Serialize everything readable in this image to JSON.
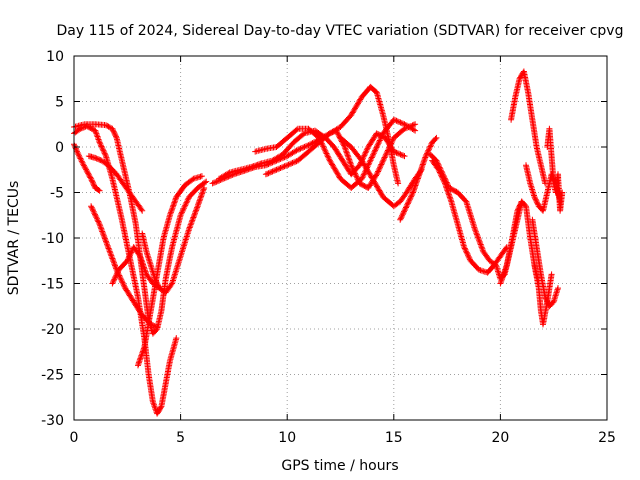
{
  "chart_data": {
    "type": "scatter",
    "title": "Day 115 of 2024, Sidereal Day-to-day VTEC variation (SDTVAR) for receiver cpvg",
    "xlabel": "GPS time / hours",
    "ylabel": "SDTVAR / TECUs",
    "xlim": [
      0,
      25
    ],
    "ylim": [
      -30,
      10
    ],
    "xticks": [
      0,
      5,
      10,
      15,
      20,
      25
    ],
    "yticks": [
      -30,
      -25,
      -20,
      -15,
      -10,
      -5,
      0,
      5,
      10
    ],
    "xtick_labels": [
      "0",
      "5",
      "10",
      "15",
      "20",
      "25"
    ],
    "ytick_labels": [
      "-30",
      "-25",
      "-20",
      "-15",
      "-10",
      "-5",
      "0",
      "5",
      "10"
    ],
    "grid": true,
    "marker": "+",
    "series": [
      {
        "name": "track-1",
        "color": "#ff0000",
        "points": [
          [
            0.0,
            2.2
          ],
          [
            0.5,
            2.5
          ],
          [
            1.0,
            2.5
          ],
          [
            1.5,
            2.4
          ],
          [
            1.8,
            2.0
          ],
          [
            2.0,
            1.0
          ],
          [
            2.3,
            -2.0
          ],
          [
            2.6,
            -5.0
          ],
          [
            2.9,
            -8.5
          ],
          [
            3.1,
            -12.0
          ],
          [
            3.3,
            -15.5
          ],
          [
            3.5,
            -19.0
          ],
          [
            3.7,
            -20.5
          ],
          [
            3.9,
            -20.0
          ],
          [
            4.1,
            -18.0
          ],
          [
            4.3,
            -14.5
          ],
          [
            4.6,
            -11.0
          ],
          [
            5.0,
            -7.5
          ],
          [
            5.4,
            -5.5
          ],
          [
            5.8,
            -4.5
          ],
          [
            6.2,
            -3.8
          ]
        ]
      },
      {
        "name": "track-2",
        "color": "#ff0000",
        "points": [
          [
            0.0,
            1.5
          ],
          [
            0.3,
            2.0
          ],
          [
            0.6,
            2.3
          ],
          [
            1.0,
            1.8
          ],
          [
            1.2,
            0.5
          ],
          [
            1.5,
            -1.0
          ],
          [
            1.8,
            -3.5
          ],
          [
            2.2,
            -7.5
          ],
          [
            2.6,
            -12.0
          ],
          [
            3.0,
            -16.5
          ],
          [
            3.3,
            -21.0
          ],
          [
            3.5,
            -25.0
          ],
          [
            3.7,
            -28.0
          ],
          [
            3.9,
            -29.3
          ],
          [
            4.1,
            -28.5
          ],
          [
            4.3,
            -26.0
          ],
          [
            4.5,
            -23.5
          ],
          [
            4.8,
            -21.0
          ]
        ]
      },
      {
        "name": "track-3",
        "color": "#ff0000",
        "points": [
          [
            0.0,
            0.3
          ],
          [
            0.2,
            -0.8
          ],
          [
            0.5,
            -2.2
          ],
          [
            0.8,
            -3.5
          ],
          [
            1.0,
            -4.5
          ],
          [
            1.2,
            -4.8
          ]
        ]
      },
      {
        "name": "track-4",
        "color": "#ff0000",
        "points": [
          [
            0.7,
            -1.0
          ],
          [
            1.0,
            -1.2
          ],
          [
            1.3,
            -1.5
          ],
          [
            1.6,
            -2.0
          ],
          [
            2.0,
            -3.0
          ],
          [
            2.3,
            -4.0
          ],
          [
            2.6,
            -5.0
          ],
          [
            2.9,
            -6.0
          ],
          [
            3.2,
            -7.0
          ]
        ]
      },
      {
        "name": "track-5",
        "color": "#ff0000",
        "points": [
          [
            0.8,
            -6.5
          ],
          [
            1.2,
            -8.5
          ],
          [
            1.6,
            -11.0
          ],
          [
            2.0,
            -13.5
          ],
          [
            2.4,
            -15.5
          ],
          [
            2.8,
            -17.0
          ],
          [
            3.2,
            -18.5
          ],
          [
            3.6,
            -19.5
          ],
          [
            3.9,
            -19.8
          ]
        ]
      },
      {
        "name": "track-6",
        "color": "#ff0000",
        "points": [
          [
            1.8,
            -15.0
          ],
          [
            2.1,
            -13.5
          ],
          [
            2.5,
            -12.5
          ],
          [
            2.8,
            -11.0
          ],
          [
            3.1,
            -12.0
          ],
          [
            3.4,
            -14.0
          ],
          [
            3.7,
            -15.0
          ],
          [
            4.0,
            -15.5
          ]
        ]
      },
      {
        "name": "track-7",
        "color": "#ff0000",
        "points": [
          [
            3.2,
            -9.5
          ],
          [
            3.4,
            -11.5
          ],
          [
            3.6,
            -13.0
          ],
          [
            3.8,
            -14.5
          ],
          [
            4.0,
            -15.5
          ],
          [
            4.3,
            -16.0
          ],
          [
            4.6,
            -15.0
          ],
          [
            5.0,
            -12.0
          ],
          [
            5.4,
            -9.0
          ],
          [
            5.8,
            -6.5
          ],
          [
            6.1,
            -4.5
          ]
        ]
      },
      {
        "name": "track-8",
        "color": "#ff0000",
        "points": [
          [
            3.0,
            -24.0
          ],
          [
            3.3,
            -22.0
          ],
          [
            3.6,
            -18.0
          ],
          [
            3.9,
            -14.0
          ],
          [
            4.2,
            -10.0
          ],
          [
            4.5,
            -7.5
          ],
          [
            4.8,
            -5.5
          ],
          [
            5.2,
            -4.2
          ],
          [
            5.6,
            -3.5
          ],
          [
            6.0,
            -3.2
          ]
        ]
      },
      {
        "name": "track-9",
        "color": "#ff0000",
        "points": [
          [
            6.5,
            -4.0
          ],
          [
            7.0,
            -3.5
          ],
          [
            7.5,
            -3.0
          ],
          [
            8.0,
            -2.6
          ],
          [
            8.5,
            -2.2
          ],
          [
            9.0,
            -2.0
          ],
          [
            9.5,
            -1.5
          ],
          [
            10.0,
            -1.0
          ],
          [
            10.5,
            -0.3
          ],
          [
            11.0,
            0.2
          ],
          [
            11.5,
            0.8
          ],
          [
            12.0,
            1.5
          ],
          [
            12.5,
            2.2
          ],
          [
            13.0,
            3.5
          ],
          [
            13.5,
            5.5
          ],
          [
            13.9,
            6.6
          ],
          [
            14.2,
            6.0
          ],
          [
            14.5,
            3.5
          ],
          [
            14.8,
            0.5
          ],
          [
            15.0,
            -2.0
          ],
          [
            15.2,
            -4.0
          ]
        ]
      },
      {
        "name": "track-10",
        "color": "#ff0000",
        "points": [
          [
            6.8,
            -3.5
          ],
          [
            7.3,
            -2.8
          ],
          [
            7.8,
            -2.5
          ],
          [
            8.3,
            -2.2
          ],
          [
            8.8,
            -1.8
          ],
          [
            9.3,
            -1.5
          ],
          [
            9.8,
            -0.8
          ],
          [
            10.3,
            0.5
          ],
          [
            10.8,
            1.5
          ],
          [
            11.3,
            1.8
          ],
          [
            11.8,
            1.0
          ],
          [
            12.2,
            0.0
          ],
          [
            12.6,
            -1.5
          ],
          [
            13.0,
            -3.0
          ],
          [
            13.4,
            -2.0
          ],
          [
            13.8,
            0.0
          ],
          [
            14.2,
            1.5
          ],
          [
            14.6,
            1.0
          ],
          [
            15.0,
            -0.5
          ],
          [
            15.5,
            -1.0
          ]
        ]
      },
      {
        "name": "track-11",
        "color": "#ff0000",
        "points": [
          [
            9.0,
            -3.0
          ],
          [
            9.5,
            -2.5
          ],
          [
            10.0,
            -2.0
          ],
          [
            10.5,
            -1.5
          ],
          [
            11.0,
            -0.5
          ],
          [
            11.5,
            0.5
          ],
          [
            12.0,
            1.5
          ],
          [
            12.3,
            1.8
          ],
          [
            12.7,
            0.0
          ],
          [
            13.0,
            -2.0
          ],
          [
            13.4,
            -4.0
          ],
          [
            13.8,
            -4.5
          ],
          [
            14.2,
            -3.0
          ],
          [
            14.6,
            -1.0
          ],
          [
            15.0,
            1.0
          ],
          [
            15.5,
            2.0
          ],
          [
            16.0,
            2.5
          ]
        ]
      },
      {
        "name": "track-12",
        "color": "#ff0000",
        "points": [
          [
            8.5,
            -0.5
          ],
          [
            9.0,
            -0.2
          ],
          [
            9.5,
            0.0
          ],
          [
            10.0,
            1.0
          ],
          [
            10.5,
            2.0
          ],
          [
            11.0,
            2.0
          ],
          [
            11.5,
            1.0
          ],
          [
            12.0,
            -1.5
          ],
          [
            12.5,
            -3.5
          ],
          [
            13.0,
            -4.5
          ],
          [
            13.5,
            -3.5
          ],
          [
            14.0,
            -1.0
          ],
          [
            14.5,
            1.5
          ],
          [
            15.0,
            3.0
          ],
          [
            15.5,
            2.5
          ],
          [
            16.0,
            1.8
          ]
        ]
      },
      {
        "name": "track-13",
        "color": "#ff0000",
        "points": [
          [
            12.5,
            1.0
          ],
          [
            13.0,
            0.0
          ],
          [
            13.5,
            -1.5
          ],
          [
            14.0,
            -3.5
          ],
          [
            14.5,
            -5.5
          ],
          [
            15.0,
            -6.5
          ],
          [
            15.3,
            -6.0
          ],
          [
            15.6,
            -5.0
          ],
          [
            16.0,
            -3.5
          ],
          [
            16.3,
            -2.5
          ]
        ]
      },
      {
        "name": "track-14",
        "color": "#ff0000",
        "points": [
          [
            15.3,
            -8.0
          ],
          [
            15.6,
            -6.5
          ],
          [
            15.9,
            -5.0
          ],
          [
            16.2,
            -3.0
          ],
          [
            16.5,
            -1.0
          ],
          [
            16.8,
            0.5
          ],
          [
            17.0,
            1.0
          ]
        ]
      },
      {
        "name": "track-15",
        "color": "#ff0000",
        "points": [
          [
            16.8,
            -1.5
          ],
          [
            17.1,
            -2.5
          ],
          [
            17.4,
            -4.0
          ],
          [
            17.7,
            -6.0
          ],
          [
            18.0,
            -8.5
          ],
          [
            18.3,
            -11.0
          ],
          [
            18.6,
            -12.5
          ],
          [
            19.0,
            -13.5
          ],
          [
            19.4,
            -13.8
          ],
          [
            19.7,
            -13.0
          ],
          [
            20.0,
            -12.0
          ],
          [
            20.3,
            -11.0
          ]
        ]
      },
      {
        "name": "track-16",
        "color": "#ff0000",
        "points": [
          [
            16.7,
            -0.8
          ],
          [
            17.0,
            -1.5
          ],
          [
            17.3,
            -3.0
          ],
          [
            17.6,
            -4.5
          ],
          [
            18.0,
            -5.0
          ],
          [
            18.4,
            -6.0
          ],
          [
            18.8,
            -9.0
          ],
          [
            19.2,
            -11.5
          ],
          [
            19.5,
            -12.5
          ],
          [
            19.8,
            -13.0
          ],
          [
            20.0,
            -14.5
          ],
          [
            20.2,
            -14.0
          ],
          [
            20.5,
            -11.0
          ],
          [
            20.8,
            -8.0
          ],
          [
            21.0,
            -6.0
          ]
        ]
      },
      {
        "name": "track-17",
        "color": "#ff0000",
        "points": [
          [
            20.0,
            -15.0
          ],
          [
            20.3,
            -13.0
          ],
          [
            20.6,
            -9.5
          ],
          [
            20.8,
            -7.0
          ],
          [
            21.0,
            -6.0
          ],
          [
            21.2,
            -6.5
          ],
          [
            21.4,
            -10.0
          ],
          [
            21.6,
            -13.0
          ],
          [
            21.8,
            -15.0
          ]
        ]
      },
      {
        "name": "track-18",
        "color": "#ff0000",
        "points": [
          [
            20.5,
            3.0
          ],
          [
            20.7,
            5.5
          ],
          [
            20.9,
            7.5
          ],
          [
            21.1,
            8.3
          ],
          [
            21.3,
            6.0
          ],
          [
            21.5,
            3.0
          ],
          [
            21.7,
            0.0
          ],
          [
            21.9,
            -2.0
          ],
          [
            22.1,
            -4.0
          ]
        ]
      },
      {
        "name": "track-19",
        "color": "#ff0000",
        "points": [
          [
            21.5,
            -8.0
          ],
          [
            21.7,
            -11.0
          ],
          [
            21.9,
            -14.0
          ],
          [
            22.1,
            -16.5
          ],
          [
            22.3,
            -17.5
          ],
          [
            22.5,
            -17.0
          ],
          [
            22.7,
            -15.5
          ]
        ]
      },
      {
        "name": "track-20",
        "color": "#ff0000",
        "points": [
          [
            21.6,
            -13.0
          ],
          [
            21.8,
            -15.5
          ],
          [
            21.9,
            -18.0
          ],
          [
            22.0,
            -19.5
          ],
          [
            22.2,
            -17.0
          ],
          [
            22.4,
            -14.0
          ]
        ]
      },
      {
        "name": "track-21",
        "color": "#ff0000",
        "points": [
          [
            21.2,
            -2.0
          ],
          [
            21.4,
            -4.0
          ],
          [
            21.6,
            -5.5
          ],
          [
            21.8,
            -6.5
          ],
          [
            22.0,
            -7.0
          ],
          [
            22.2,
            -5.0
          ],
          [
            22.4,
            -3.0
          ],
          [
            22.6,
            -4.0
          ],
          [
            22.8,
            -6.0
          ]
        ]
      },
      {
        "name": "track-22",
        "color": "#ff0000",
        "points": [
          [
            22.2,
            0.0
          ],
          [
            22.3,
            2.0
          ],
          [
            22.4,
            -1.0
          ],
          [
            22.5,
            -4.0
          ],
          [
            22.6,
            -5.0
          ],
          [
            22.7,
            -3.0
          ],
          [
            22.8,
            -7.0
          ],
          [
            22.9,
            -5.0
          ]
        ]
      }
    ]
  }
}
